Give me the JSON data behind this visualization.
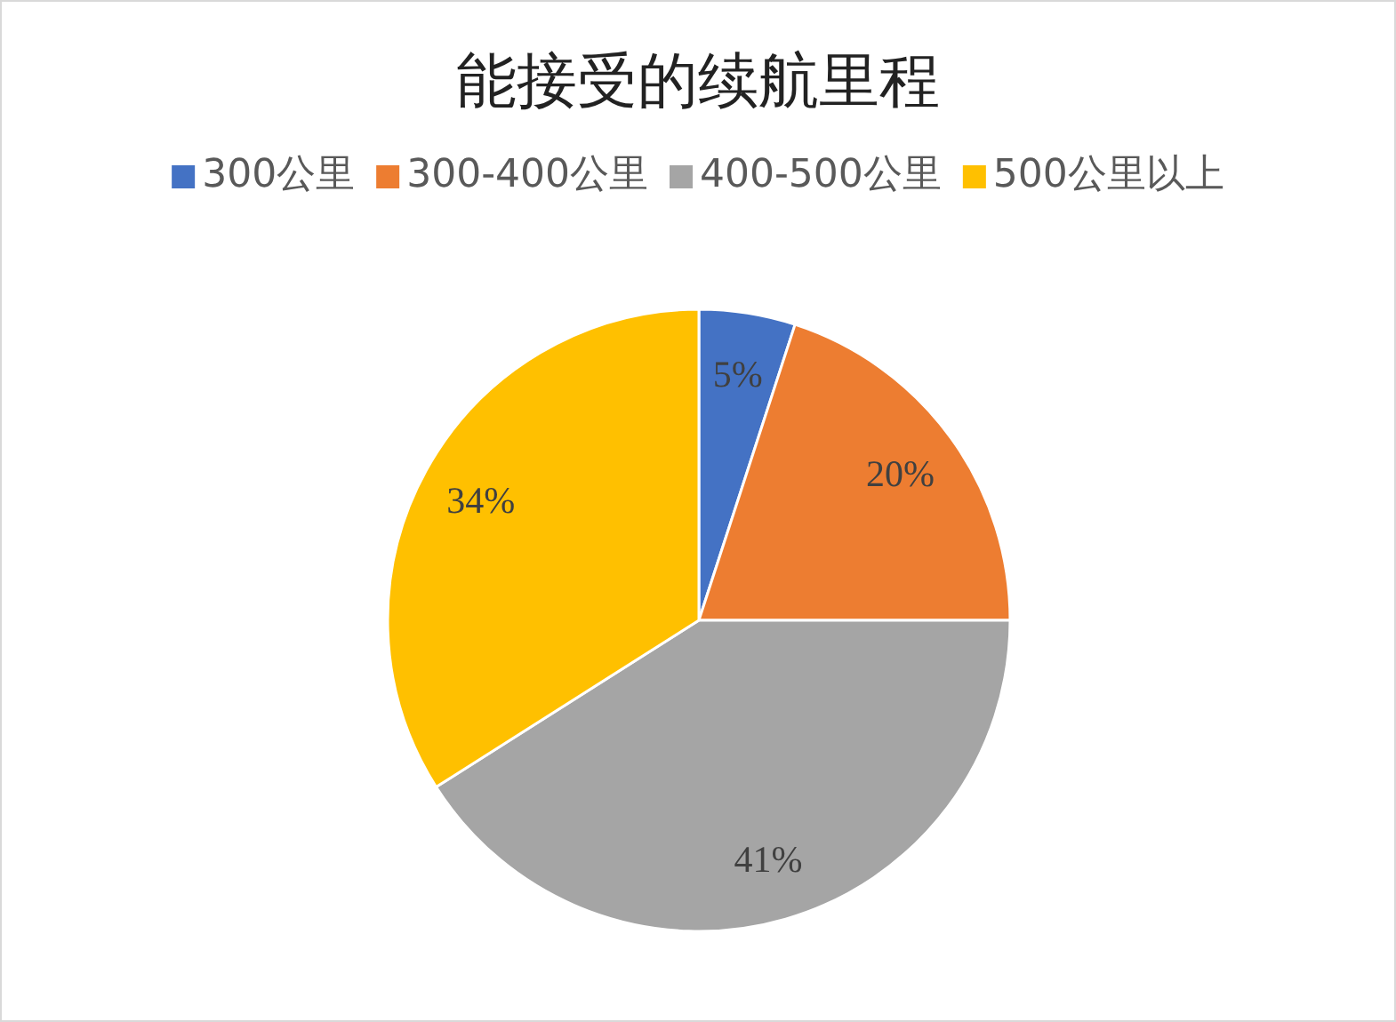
{
  "chart_data": {
    "type": "pie",
    "title": "能接受的续航里程",
    "categories": [
      "300公里",
      "300-400公里",
      "400-500公里",
      "500公里以上"
    ],
    "values": [
      5,
      20,
      41,
      34
    ],
    "colors": [
      "#4472c4",
      "#ed7d31",
      "#a5a5a5",
      "#ffc000"
    ],
    "value_labels": [
      "5%",
      "20%",
      "41%",
      "34%"
    ],
    "legend": "top"
  }
}
